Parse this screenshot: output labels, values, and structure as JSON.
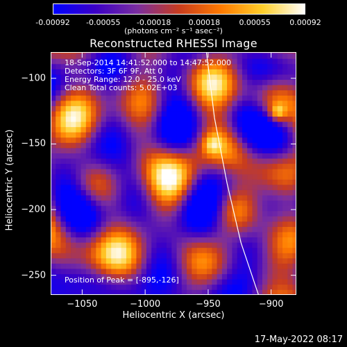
{
  "colorbar": {
    "ticks": [
      "-0.00092",
      "-0.00055",
      "-0.00018",
      "0.00018",
      "0.00055",
      "0.00092"
    ],
    "unit": "(photons cm⁻² s⁻¹ asec⁻²)",
    "range": [
      -0.00092,
      0.00092
    ],
    "colors": [
      "#0000ff",
      "#3b00c6",
      "#7a2ea0",
      "#c83c1e",
      "#ff7a00",
      "#ffcf2a",
      "#ffffff"
    ]
  },
  "chart_data": {
    "type": "heatmap",
    "title": "Reconstructed RHESSI Image",
    "xlabel": "Heliocentric X (arcsec)",
    "ylabel": "Heliocentric Y (arcsec)",
    "xlim": [
      -1075,
      -880
    ],
    "ylim": [
      -265,
      -80
    ],
    "xticks": [
      {
        "value": -1050,
        "label": "−1050"
      },
      {
        "value": -1000,
        "label": "−1000"
      },
      {
        "value": -950,
        "label": "−950"
      },
      {
        "value": -900,
        "label": "−900"
      }
    ],
    "yticks": [
      {
        "value": -100,
        "label": "−100"
      },
      {
        "value": -150,
        "label": "−150"
      },
      {
        "value": -200,
        "label": "−200"
      },
      {
        "value": -250,
        "label": "−250"
      }
    ],
    "annotations": [
      "18-Sep-2014 14:41:52.000 to 14:47:52.000",
      "Detectors: 3F 6F 9F, Att 0",
      "Energy Range: 12.0 - 25.0 keV",
      "Clean     Total counts: 5.02E+03"
    ],
    "peak_label": "Position of Peak = [-895,-126]",
    "peak": [
      -895,
      -126
    ],
    "limb_curve": [
      [
        -952,
        -75
      ],
      [
        -945,
        -130
      ],
      [
        -935,
        -180
      ],
      [
        -924,
        -225
      ],
      [
        -910,
        -265
      ]
    ],
    "pixel_size_arcsec": 4,
    "grid": false
  },
  "footer": {
    "timestamp": "17-May-2022 08:17"
  }
}
